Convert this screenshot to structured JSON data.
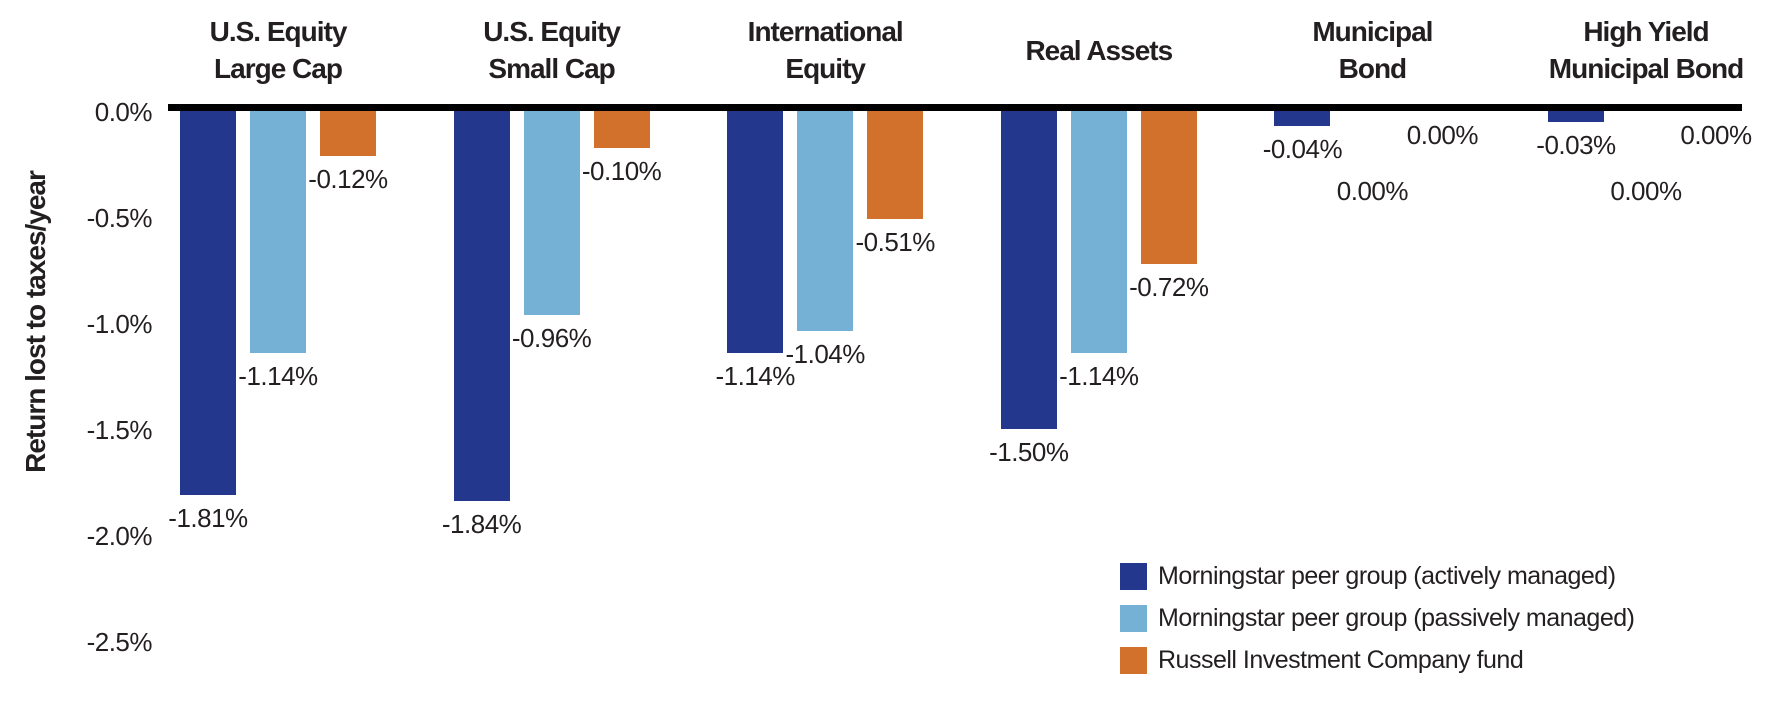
{
  "chart_data": {
    "type": "bar",
    "title": "",
    "ylabel": "Return lost to taxes/year",
    "xlabel": "",
    "ylim": [
      -2.5,
      0
    ],
    "grid": false,
    "legend_position": "bottom-right",
    "y_ticks": [
      "0.0%",
      "-0.5%",
      "-1.0%",
      "-1.5%",
      "-2.0%",
      "-2.5%"
    ],
    "categories": [
      [
        "U.S. Equity",
        "Large Cap"
      ],
      [
        "U.S. Equity",
        "Small Cap"
      ],
      [
        "International",
        "Equity"
      ],
      [
        "Real Assets"
      ],
      [
        "Municipal",
        "Bond"
      ],
      [
        "High Yield",
        "Municipal Bond"
      ]
    ],
    "series": [
      {
        "name": "Morningstar peer group (actively managed)",
        "color": "#23388D",
        "values": [
          -1.81,
          -1.84,
          -1.14,
          -1.5,
          -0.04,
          -0.03
        ],
        "labels": [
          "-1.81%",
          "-1.84%",
          "-1.14%",
          "-1.50%",
          "-0.04%",
          "-0.03%"
        ]
      },
      {
        "name": "Morningstar peer group (passively managed)",
        "color": "#74B1D5",
        "values": [
          -1.14,
          -0.96,
          -1.04,
          -1.14,
          0,
          0
        ],
        "labels": [
          "-1.14%",
          "-0.96%",
          "-1.04%",
          "-1.14%",
          "0.00%",
          "0.00%"
        ]
      },
      {
        "name": "Russell Investment Company fund",
        "color": "#D2712B",
        "values": [
          -0.12,
          -0.1,
          -0.51,
          -0.72,
          0,
          0
        ],
        "labels": [
          "-0.12%",
          "-0.10%",
          "-0.51%",
          "-0.72%",
          "0.00%",
          "0.00%"
        ]
      }
    ],
    "axis": {
      "zero_line_color": "#000000",
      "text_color": "#231F20"
    }
  }
}
